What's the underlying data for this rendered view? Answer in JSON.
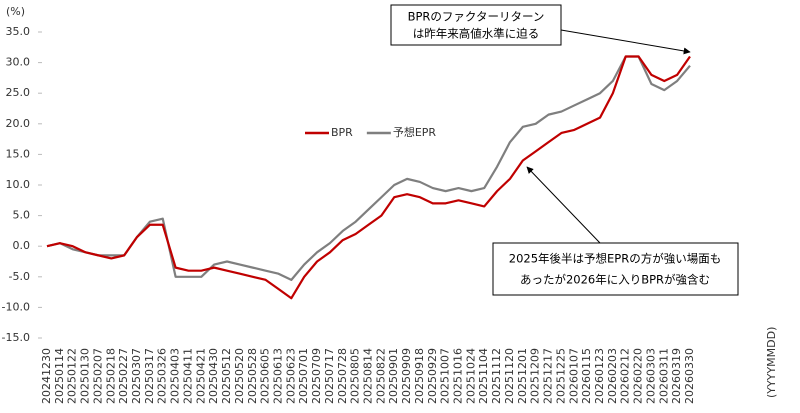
{
  "chart_data": {
    "type": "line",
    "y_unit": "(%)",
    "x_unit": "(YYYYMMDD)",
    "categories": [
      "20241230",
      "20250114",
      "20250122",
      "20250130",
      "20250207",
      "20250218",
      "20250227",
      "20250307",
      "20250317",
      "20250326",
      "20250403",
      "20250411",
      "20250421",
      "20250430",
      "20250512",
      "20250520",
      "20250528",
      "20250605",
      "20250613",
      "20250623",
      "20250701",
      "20250709",
      "20250717",
      "20250728",
      "20250805",
      "20250814",
      "20250822",
      "20250901",
      "20250909",
      "20250918",
      "20250929",
      "20251007",
      "20251016",
      "20251024",
      "20251104",
      "20251112",
      "20251120",
      "20251201",
      "20251209",
      "20251217",
      "20251225",
      "20260107",
      "20260115",
      "20260123",
      "20260203",
      "20260212",
      "20260220",
      "20260303",
      "20260311",
      "20260319",
      "20260330"
    ],
    "series": [
      {
        "name": "BPR",
        "color": "#c00000",
        "values": [
          0,
          0.5,
          0,
          -1,
          -1.5,
          -2,
          -1.5,
          1.5,
          3.5,
          3.5,
          -3.5,
          -4,
          -4,
          -3.5,
          -4,
          -4.5,
          -5,
          -5.5,
          -7,
          -8.5,
          -5,
          -2.5,
          -1,
          1,
          2,
          3.5,
          5,
          8,
          8.5,
          8,
          7,
          7,
          7.5,
          7,
          6.5,
          9,
          11,
          14,
          15.5,
          17,
          18.5,
          19,
          20,
          21,
          25,
          31,
          31,
          28,
          27,
          28,
          31
        ]
      },
      {
        "name": "予想EPR",
        "color": "#7f7f7f",
        "values": [
          0,
          0.5,
          -0.5,
          -1,
          -1.5,
          -1.5,
          -1.5,
          1.5,
          4,
          4.5,
          -5,
          -5,
          -5,
          -3,
          -2.5,
          -3,
          -3.5,
          -4,
          -4.5,
          -5.5,
          -3,
          -1,
          0.5,
          2.5,
          4,
          6,
          8,
          10,
          11,
          10.5,
          9.5,
          9,
          9.5,
          9,
          9.5,
          13,
          17,
          19.5,
          20,
          21.5,
          22,
          23,
          24,
          25,
          27,
          31,
          31,
          26.5,
          25.5,
          27,
          29.5
        ]
      }
    ],
    "ylim": [
      -15,
      35
    ],
    "yticks": [
      {
        "value": -15,
        "label": "-15.0"
      },
      {
        "value": -10,
        "label": "-10.0"
      },
      {
        "value": -5,
        "label": "-5.0"
      },
      {
        "value": 0,
        "label": "0.0"
      },
      {
        "value": 5,
        "label": "5.0"
      },
      {
        "value": 10,
        "label": "10.0"
      },
      {
        "value": 15,
        "label": "15.0"
      },
      {
        "value": 20,
        "label": "20.0"
      },
      {
        "value": 25,
        "label": "25.0"
      },
      {
        "value": 30,
        "label": "30.0"
      },
      {
        "value": 35,
        "label": "35.0"
      }
    ],
    "annotations": [
      [
        "BPRのファクターリターン",
        "は昨年来高値水準に迫る"
      ],
      [
        "2025年後半は予想EPRの方が強い場面も",
        "あったが2026年に入りBPRが強含む"
      ]
    ]
  }
}
